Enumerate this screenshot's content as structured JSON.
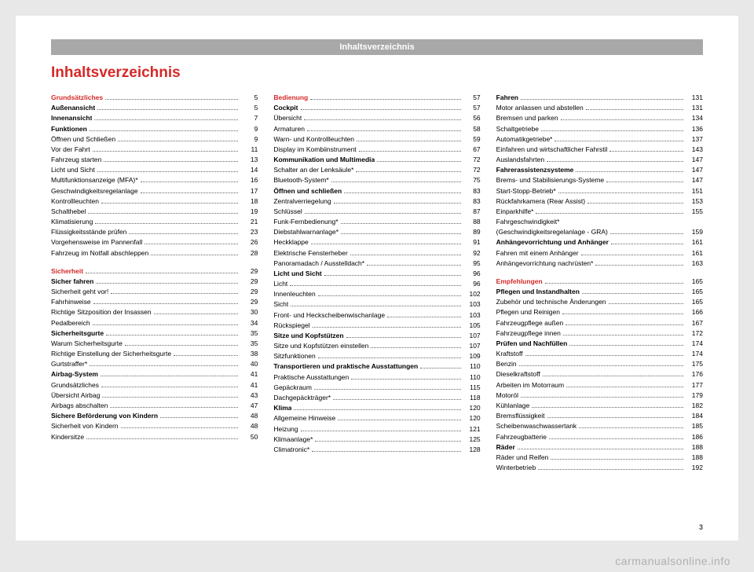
{
  "header": "Inhaltsverzeichnis",
  "title": "Inhaltsverzeichnis",
  "pageNum": "3",
  "watermark": "carmanualsonline.info",
  "columns": [
    [
      {
        "type": "section",
        "label": "Grundsätzliches",
        "page": "5"
      },
      {
        "type": "bold",
        "label": "Außenansicht",
        "page": "5"
      },
      {
        "type": "bold",
        "label": "Innenansicht",
        "page": "7"
      },
      {
        "type": "bold",
        "label": "Funktionen",
        "page": "9"
      },
      {
        "type": "entry",
        "label": "Öffnen und Schließen",
        "page": "9"
      },
      {
        "type": "entry",
        "label": "Vor der Fahrt",
        "page": "11"
      },
      {
        "type": "entry",
        "label": "Fahrzeug starten",
        "page": "13"
      },
      {
        "type": "entry",
        "label": "Licht und Sicht",
        "page": "14"
      },
      {
        "type": "entry",
        "label": "Multifunktionsanzeige (MFA)*",
        "page": "16"
      },
      {
        "type": "entry",
        "label": "Geschwindigkeitsregelanlage",
        "page": "17"
      },
      {
        "type": "entry",
        "label": "Kontrollleuchten",
        "page": "18"
      },
      {
        "type": "entry",
        "label": "Schalthebel",
        "page": "19"
      },
      {
        "type": "entry",
        "label": "Klimatisierung",
        "page": "21"
      },
      {
        "type": "entry",
        "label": "Flüssigkeitsstände prüfen",
        "page": "23"
      },
      {
        "type": "entry",
        "label": "Vorgehensweise im Pannenfall",
        "page": "26"
      },
      {
        "type": "entry",
        "label": "Fahrzeug im Notfall abschleppen",
        "page": "28"
      },
      {
        "type": "spacer"
      },
      {
        "type": "section",
        "label": "Sicherheit",
        "page": "29"
      },
      {
        "type": "bold",
        "label": "Sicher fahren",
        "page": "29"
      },
      {
        "type": "entry",
        "label": "Sicherheit geht vor!",
        "page": "29"
      },
      {
        "type": "entry",
        "label": "Fahrhinweise",
        "page": "29"
      },
      {
        "type": "entry",
        "label": "Richtige Sitzposition der Insassen",
        "page": "30"
      },
      {
        "type": "entry",
        "label": "Pedalbereich",
        "page": "34"
      },
      {
        "type": "bold",
        "label": "Sicherheitsgurte",
        "page": "35"
      },
      {
        "type": "entry",
        "label": "Warum Sicherheitsgurte",
        "page": "35"
      },
      {
        "type": "entry",
        "label": "Richtige Einstellung der Sicherheitsgurte",
        "page": "38"
      },
      {
        "type": "entry",
        "label": "Gurtstraffer*",
        "page": "40"
      },
      {
        "type": "bold",
        "label": "Airbag-System",
        "page": "41"
      },
      {
        "type": "entry",
        "label": "Grundsätzliches",
        "page": "41"
      },
      {
        "type": "entry",
        "label": "Übersicht Airbag",
        "page": "43"
      },
      {
        "type": "entry",
        "label": "Airbags abschalten",
        "page": "47"
      },
      {
        "type": "bold",
        "label": "Sichere Beförderung von Kindern",
        "page": "48"
      },
      {
        "type": "entry",
        "label": "Sicherheit von Kindern",
        "page": "48"
      },
      {
        "type": "entry",
        "label": "Kindersitze",
        "page": "50"
      }
    ],
    [
      {
        "type": "section",
        "label": "Bedienung",
        "page": "57"
      },
      {
        "type": "bold",
        "label": "Cockpit",
        "page": "57"
      },
      {
        "type": "entry",
        "label": "Übersicht",
        "page": "56"
      },
      {
        "type": "entry",
        "label": "Armaturen",
        "page": "58"
      },
      {
        "type": "entry",
        "label": "Warn- und Kontrollleuchten",
        "page": "59"
      },
      {
        "type": "entry",
        "label": "Display im Kombiinstrument",
        "page": "67"
      },
      {
        "type": "bold",
        "label": "Kommunikation und Multimedia",
        "page": "72"
      },
      {
        "type": "entry",
        "label": "Schalter an der Lenksäule*",
        "page": "72"
      },
      {
        "type": "entry",
        "label": "Bluetooth-System*",
        "page": "75"
      },
      {
        "type": "bold",
        "label": "Öffnen und schließen",
        "page": "83"
      },
      {
        "type": "entry",
        "label": "Zentralverriegelung",
        "page": "83"
      },
      {
        "type": "entry",
        "label": "Schlüssel",
        "page": "87"
      },
      {
        "type": "entry",
        "label": "Funk-Fernbedienung*",
        "page": "88"
      },
      {
        "type": "entry",
        "label": "Diebstahlwarnanlage*",
        "page": "89"
      },
      {
        "type": "entry",
        "label": "Heckklappe",
        "page": "91"
      },
      {
        "type": "entry",
        "label": "Elektrische Fensterheber",
        "page": "92"
      },
      {
        "type": "entry",
        "label": "Panoramadach / Ausstelldach*",
        "page": "95"
      },
      {
        "type": "bold",
        "label": "Licht und Sicht",
        "page": "96"
      },
      {
        "type": "entry",
        "label": "Licht",
        "page": "96"
      },
      {
        "type": "entry",
        "label": "Innenleuchten",
        "page": "102"
      },
      {
        "type": "entry",
        "label": "Sicht",
        "page": "103"
      },
      {
        "type": "entry",
        "label": "Front- und Heckscheibenwischanlage",
        "page": "103"
      },
      {
        "type": "entry",
        "label": "Rückspiegel",
        "page": "105"
      },
      {
        "type": "bold",
        "label": "Sitze und Kopfstützen",
        "page": "107"
      },
      {
        "type": "entry",
        "label": "Sitze und Kopfstützen einstellen",
        "page": "107"
      },
      {
        "type": "entry",
        "label": "Sitzfunktionen",
        "page": "109"
      },
      {
        "type": "bold",
        "label": "Transportieren und praktische Ausstattungen",
        "page": "110"
      },
      {
        "type": "entry",
        "label": "Praktische Ausstattungen",
        "page": "110"
      },
      {
        "type": "entry",
        "label": "Gepäckraum",
        "page": "115"
      },
      {
        "type": "entry",
        "label": "Dachgepäckträger*",
        "page": "118"
      },
      {
        "type": "bold",
        "label": "Klima",
        "page": "120"
      },
      {
        "type": "entry",
        "label": "Allgemeine Hinweise",
        "page": "120"
      },
      {
        "type": "entry",
        "label": "Heizung",
        "page": "121"
      },
      {
        "type": "entry",
        "label": "Klimaanlage*",
        "page": "125"
      },
      {
        "type": "entry",
        "label": "Climatronic*",
        "page": "128"
      }
    ],
    [
      {
        "type": "bold",
        "label": "Fahren",
        "page": "131"
      },
      {
        "type": "entry",
        "label": "Motor anlassen und abstellen",
        "page": "131"
      },
      {
        "type": "entry",
        "label": "Bremsen und parken",
        "page": "134"
      },
      {
        "type": "entry",
        "label": "Schaltgetriebe",
        "page": "136"
      },
      {
        "type": "entry",
        "label": "Automatikgetriebe*",
        "page": "137"
      },
      {
        "type": "entry",
        "label": "Einfahren und wirtschaftlicher Fahrstil",
        "page": "143"
      },
      {
        "type": "entry",
        "label": "Auslandsfahrten",
        "page": "147"
      },
      {
        "type": "bold",
        "label": "Fahrerassistenzsysteme",
        "page": "147"
      },
      {
        "type": "entry",
        "label": "Brems- und Stabilisierungs-Systeme",
        "page": "147"
      },
      {
        "type": "entry",
        "label": "Start-Stopp-Betrieb*",
        "page": "151"
      },
      {
        "type": "entry",
        "label": "Rückfahrkamera (Rear Assist)",
        "page": "153"
      },
      {
        "type": "entry",
        "label": "Einparkhilfe*",
        "page": "155"
      },
      {
        "type": "entry",
        "label": "Fahrgeschwindigkeit*",
        "page": ""
      },
      {
        "type": "entry",
        "label": "(Geschwindigkeitsregelanlage - GRA)",
        "page": "159"
      },
      {
        "type": "bold",
        "label": "Anhängevorrichtung und Anhänger",
        "page": "161"
      },
      {
        "type": "entry",
        "label": "Fahren mit einem Anhänger",
        "page": "161"
      },
      {
        "type": "entry",
        "label": "Anhängevorrichtung nachrüsten*",
        "page": "163"
      },
      {
        "type": "spacer"
      },
      {
        "type": "section",
        "label": "Empfehlungen",
        "page": "165"
      },
      {
        "type": "bold",
        "label": "Pflegen und Instandhalten",
        "page": "165"
      },
      {
        "type": "entry",
        "label": "Zubehör und technische Änderungen",
        "page": "165"
      },
      {
        "type": "entry",
        "label": "Pflegen und Reinigen",
        "page": "166"
      },
      {
        "type": "entry",
        "label": "Fahrzeugpflege außen",
        "page": "167"
      },
      {
        "type": "entry",
        "label": "Fahrzeugpflege innen",
        "page": "172"
      },
      {
        "type": "bold",
        "label": "Prüfen und Nachfüllen",
        "page": "174"
      },
      {
        "type": "entry",
        "label": "Kraftstoff",
        "page": "174"
      },
      {
        "type": "entry",
        "label": "Benzin",
        "page": "175"
      },
      {
        "type": "entry",
        "label": "Dieselkraftstoff",
        "page": "176"
      },
      {
        "type": "entry",
        "label": "Arbeiten im Motorraum",
        "page": "177"
      },
      {
        "type": "entry",
        "label": "Motoröl",
        "page": "179"
      },
      {
        "type": "entry",
        "label": "Kühlanlage",
        "page": "182"
      },
      {
        "type": "entry",
        "label": "Bremsflüssigkeit",
        "page": "184"
      },
      {
        "type": "entry",
        "label": "Scheibenwaschwassertank",
        "page": "185"
      },
      {
        "type": "entry",
        "label": "Fahrzeugbatterie",
        "page": "186"
      },
      {
        "type": "bold",
        "label": "Räder",
        "page": "188"
      },
      {
        "type": "entry",
        "label": "Räder und Reifen",
        "page": "188"
      },
      {
        "type": "entry",
        "label": "Winterbetrieb",
        "page": "192"
      }
    ]
  ]
}
